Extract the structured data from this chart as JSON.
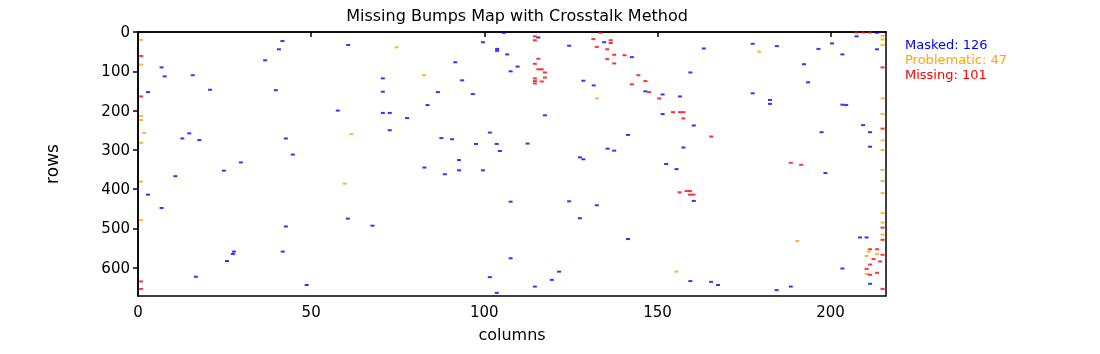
{
  "chart_data": {
    "type": "scatter",
    "title": "Missing Bumps Map with Crosstalk Method",
    "xlabel": "columns",
    "ylabel": "rows",
    "xlim": [
      0,
      216
    ],
    "ylim": [
      672,
      0
    ],
    "xticks": [
      0,
      50,
      100,
      150,
      200
    ],
    "yticks": [
      0,
      100,
      200,
      300,
      400,
      500,
      600
    ],
    "grid": false,
    "legend": "top right",
    "marker": "square",
    "series": [
      {
        "name": "Masked: 126",
        "color": "#0000ff",
        "x": [
          41.7,
          40.7,
          60.7,
          36.7,
          6.8,
          7.7,
          15.8,
          70.7,
          2.9,
          20.8,
          39.8,
          70.7,
          57.7,
          70.7,
          14.8,
          12.8,
          17.7,
          42.7,
          44.7,
          29.7,
          24.8,
          10.8,
          2.9,
          6.8,
          60.6,
          42.7,
          67.7,
          27.7,
          27.4,
          25.7,
          41.8,
          16.7,
          48.7,
          105.6,
          99.6,
          115.6,
          103.7,
          103.7,
          106.6,
          91.6,
          124.5,
          134.6,
          142.6,
          109.6,
          107.6,
          93.6,
          86.6,
          96.7,
          83.6,
          128.6,
          131.6,
          72.7,
          77.7,
          117.5,
          72.7,
          101.6,
          87.6,
          90.7,
          97.6,
          103.6,
          104.5,
          112.5,
          141.5,
          135.6,
          137.5,
          127.6,
          128.6,
          92.7,
          82.7,
          92.7,
          99.6,
          88.6,
          107.6,
          124.5,
          132.5,
          127.6,
          141.5,
          107.6,
          121.6,
          119.5,
          101.6,
          114.6,
          103.6,
          163.4,
          177.5,
          184.5,
          196.5,
          200.4,
          207.5,
          213.4,
          213.4,
          203.4,
          159.5,
          192.3,
          193.5,
          146.5,
          151.5,
          156.5,
          177.5,
          182.5,
          182.5,
          151.5,
          160.5,
          203.4,
          204.5,
          209.4,
          197.4,
          211.4,
          211.4,
          157.5,
          152.5,
          155.5,
          198.5,
          160.5,
          208.5,
          210.4,
          203.4,
          211.4,
          159.5,
          165.5,
          167.5,
          188.5,
          184.4
        ],
        "values": [
          23,
          44,
          33,
          72,
          90,
          113,
          110,
          118,
          153,
          147,
          148,
          152,
          200,
          206,
          258,
          271,
          275,
          271,
          312,
          332,
          353,
          367,
          414,
          448,
          475,
          495,
          493,
          559,
          565,
          583,
          559,
          623,
          644,
          2,
          26,
          14,
          43,
          48,
          57,
          77,
          35,
          26,
          64,
          88,
          100,
          123,
          153,
          158,
          186,
          124,
          136,
          206,
          219,
          212,
          250,
          256,
          270,
          273,
          285,
          285,
          303,
          284,
          262,
          297,
          302,
          319,
          324,
          326,
          345,
          352,
          352,
          362,
          432,
          431,
          441,
          474,
          527,
          576,
          610,
          631,
          624,
          648,
          664,
          42,
          30,
          36,
          43,
          29,
          11,
          2,
          44,
          57,
          103,
          82,
          128,
          151,
          159,
          164,
          156,
          173,
          183,
          209,
          238,
          185,
          186,
          237,
          255,
          255,
          292,
          294,
          336,
          349,
          359,
          430,
          523,
          523,
          602,
          641,
          634,
          636,
          644,
          648,
          657
        ]
      },
      {
        "name": "Problematic: 47",
        "color": "#ffa500",
        "x": [
          0.9,
          0.9,
          0.9,
          0.9,
          1.8,
          0.9,
          0.9,
          0.9,
          61.6,
          59.7,
          74.7,
          82.6,
          132.5,
          179.4,
          190.4,
          155.5,
          210.4,
          210.4,
          215,
          215,
          215,
          215,
          215,
          215,
          215,
          215,
          215,
          215,
          215,
          215,
          215,
          211,
          213.4
        ],
        "values": [
          20,
          83,
          214,
          224,
          257,
          282,
          381,
          479,
          260,
          386,
          39,
          110,
          169,
          50,
          532,
          610,
          570,
          616,
          10,
          19,
          33,
          169,
          209,
          276,
          301,
          351,
          379,
          410,
          461,
          485,
          516,
          559,
          565
        ]
      },
      {
        "name": "Missing: 101",
        "color": "#ff0000",
        "x": [
          0.9,
          0.9,
          0.9,
          0.9,
          133.5,
          114.6,
          114.6,
          131.5,
          136.5,
          136.5,
          132.5,
          135.5,
          137.5,
          140.5,
          135.5,
          137.5,
          115.6,
          114.6,
          115.6,
          116.6,
          117.5,
          117.5,
          114.6,
          114.6,
          114.6,
          116.6,
          144.5,
          142.6,
          146.5,
          147.6,
          150.5,
          154.5,
          156.5,
          157.5,
          157.5,
          165.5,
          188.5,
          191.5,
          158.4,
          159.4,
          159.4,
          160.4,
          156.4,
          211.4,
          213.4,
          212.4,
          211.4,
          214.3,
          210.4,
          211.4,
          213.4,
          215,
          215,
          215,
          215,
          215,
          215,
          207.5,
          209.4,
          211.4
        ],
        "values": [
          61,
          164,
          635,
          654,
          2,
          11,
          21,
          18,
          21,
          28,
          38,
          44,
          58,
          59,
          69,
          80,
          68,
          81,
          95,
          95,
          103,
          116,
          118,
          125,
          131,
          126,
          110,
          133,
          125,
          153,
          169,
          204,
          204,
          204,
          220,
          266,
          333,
          338,
          405,
          405,
          414,
          414,
          408,
          553,
          553,
          578,
          592,
          584,
          603,
          618,
          613,
          90,
          246,
          498,
          529,
          567,
          654,
          1,
          1,
          1
        ]
      }
    ]
  }
}
